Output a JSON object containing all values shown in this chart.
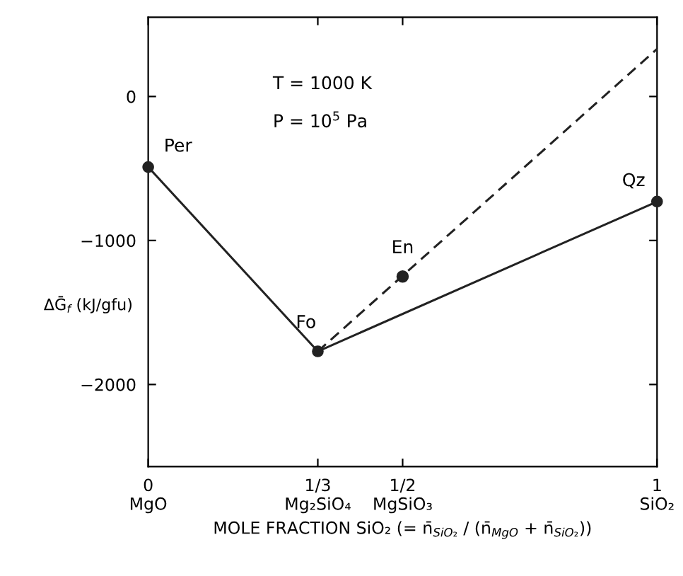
{
  "chart_data": {
    "type": "line",
    "xlabel": "MOLE FRACTION SiO₂ (= n̄$_{SiO₂}$ / (n̄$_{MgO}$ + n̄$_{SiO₂}$))",
    "ylabel": "ΔḠ$_{f}$ (kJ/gfu)",
    "xlim": [
      0,
      1
    ],
    "ylim": [
      -2570,
      550
    ],
    "xticks": [
      {
        "value": 0,
        "label": "0\nMgO"
      },
      {
        "value": 0.3333,
        "label": "1/3\nMg₂SiO₄"
      },
      {
        "value": 0.5,
        "label": "1/2\nMgSiO₃"
      },
      {
        "value": 1,
        "label": "1\nSiO₂"
      }
    ],
    "yticks": [
      0,
      -1000,
      -2000
    ],
    "grid": false,
    "legend": false,
    "series": [
      {
        "color": "#222222",
        "x": [
          0,
          0.3333,
          1
        ],
        "values": [
          -490,
          -1770,
          -730
        ],
        "marker": "circle",
        "line_style": "solid"
      },
      {
        "type": "scatter",
        "color": "#222222",
        "x": [
          0.5
        ],
        "values": [
          -1250
        ],
        "marker": "circle"
      },
      {
        "color": "#222222",
        "x": [
          0.3333,
          1
        ],
        "values": [
          -1770,
          330
        ],
        "marker": "none",
        "line_style": "dashed"
      }
    ],
    "annotations": [
      "T = 1000 K",
      "P = 10$^{5}$ Pa",
      {
        "text": "Per",
        "x": 0,
        "y": -490
      },
      {
        "text": "Fo",
        "x": 0.3333,
        "y": -1770
      },
      {
        "text": "En",
        "x": 0.5,
        "y": -1250
      },
      {
        "text": "Qz",
        "x": 1,
        "y": -730
      }
    ]
  }
}
